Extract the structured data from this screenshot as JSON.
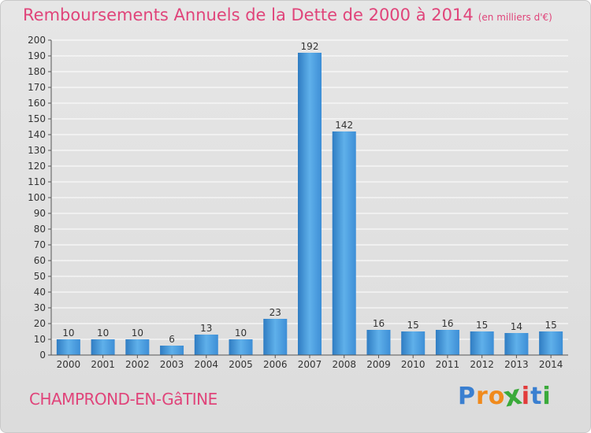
{
  "title": "Remboursements Annuels de la Dette de 2000 à 2014",
  "unit": "(en milliers d'€)",
  "commune": "CHAMPROND-EN-GâTINE",
  "brand": {
    "letters": [
      "P",
      "r",
      "o",
      "x",
      "i",
      "t",
      "i"
    ],
    "colors": [
      "#3a7fd0",
      "#f08a1c",
      "#f08a1c",
      "#3aaa3a",
      "#e23b3b",
      "#3a7fd0",
      "#3aaa3a"
    ]
  },
  "colors": {
    "accent": "#e0447a",
    "bar": "#3d8ed6",
    "bar_light": "#5fb0ea"
  },
  "chart_data": {
    "type": "bar",
    "categories": [
      "2000",
      "2001",
      "2002",
      "2003",
      "2004",
      "2005",
      "2006",
      "2007",
      "2008",
      "2009",
      "2010",
      "2011",
      "2012",
      "2013",
      "2014"
    ],
    "values": [
      10,
      10,
      10,
      6,
      13,
      10,
      23,
      192,
      142,
      16,
      15,
      16,
      15,
      14,
      15
    ],
    "ylim": [
      0,
      200
    ],
    "ytick_step": 10,
    "grid": true
  }
}
